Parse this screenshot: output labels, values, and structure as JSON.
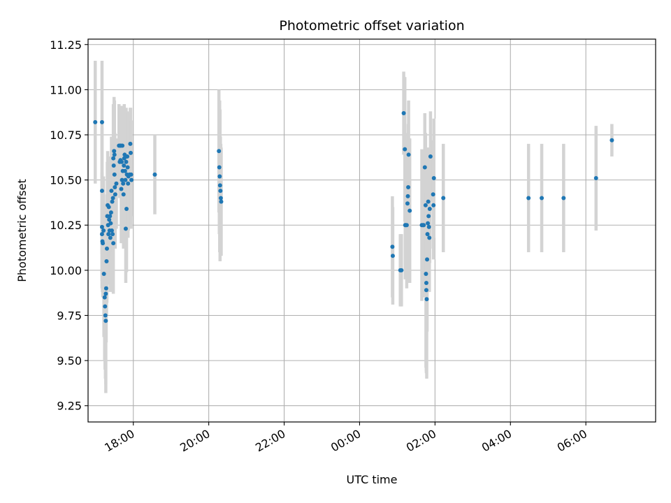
{
  "chart_data": {
    "type": "scatter",
    "title": "Photometric offset variation",
    "xlabel": "UTC time",
    "ylabel": "Photometric offset",
    "grid": true,
    "colors": {
      "point": "#1f77b4",
      "errorbar": "#d3d3d3",
      "grid": "#b0b0b0",
      "axis": "#000000"
    },
    "xlim": [
      16.8,
      31.85
    ],
    "ylim": [
      9.16,
      11.28
    ],
    "x_ticks": [
      {
        "value": 18,
        "label": "18:00"
      },
      {
        "value": 20,
        "label": "20:00"
      },
      {
        "value": 22,
        "label": "22:00"
      },
      {
        "value": 24,
        "label": "00:00"
      },
      {
        "value": 26,
        "label": "02:00"
      },
      {
        "value": 28,
        "label": "04:00"
      },
      {
        "value": 30,
        "label": "06:00"
      }
    ],
    "y_ticks": [
      {
        "value": 9.25,
        "label": "9.25"
      },
      {
        "value": 9.5,
        "label": "9.50"
      },
      {
        "value": 9.75,
        "label": "9.75"
      },
      {
        "value": 10.0,
        "label": "10.00"
      },
      {
        "value": 10.25,
        "label": "10.25"
      },
      {
        "value": 10.5,
        "label": "10.50"
      },
      {
        "value": 10.75,
        "label": "10.75"
      },
      {
        "value": 11.0,
        "label": "11.00"
      },
      {
        "value": 11.25,
        "label": "11.25"
      }
    ],
    "series": [
      {
        "name": "offset",
        "points": [
          [
            16.99,
            10.82,
            0.34
          ],
          [
            17.17,
            10.82,
            0.34
          ],
          [
            17.17,
            10.44,
            0.35
          ],
          [
            17.17,
            10.24,
            0.3
          ],
          [
            17.17,
            10.2,
            0.3
          ],
          [
            17.18,
            10.16,
            0.28
          ],
          [
            17.19,
            10.15,
            0.3
          ],
          [
            17.21,
            10.22,
            0.3
          ],
          [
            17.22,
            9.98,
            0.35
          ],
          [
            17.24,
            9.85,
            0.35
          ],
          [
            17.25,
            9.8,
            0.35
          ],
          [
            17.26,
            9.75,
            0.35
          ],
          [
            17.27,
            9.72,
            0.4
          ],
          [
            17.27,
            9.87,
            0.5
          ],
          [
            17.28,
            9.9,
            0.3
          ],
          [
            17.29,
            10.05,
            0.3
          ],
          [
            17.3,
            10.12,
            0.3
          ],
          [
            17.31,
            10.3,
            0.3
          ],
          [
            17.32,
            10.36,
            0.3
          ],
          [
            17.33,
            10.25,
            0.3
          ],
          [
            17.34,
            10.2,
            0.28
          ],
          [
            17.35,
            10.35,
            0.28
          ],
          [
            17.36,
            10.28,
            0.3
          ],
          [
            17.37,
            10.22,
            0.3
          ],
          [
            17.38,
            10.3,
            0.3
          ],
          [
            17.39,
            10.18,
            0.3
          ],
          [
            17.4,
            10.26,
            0.3
          ],
          [
            17.41,
            10.32,
            0.3
          ],
          [
            17.42,
            10.44,
            0.3
          ],
          [
            17.43,
            10.22,
            0.28
          ],
          [
            17.44,
            10.38,
            0.3
          ],
          [
            17.45,
            10.2,
            0.3
          ],
          [
            17.46,
            10.4,
            0.3
          ],
          [
            17.47,
            10.62,
            0.3
          ],
          [
            17.47,
            10.15,
            0.28
          ],
          [
            17.48,
            10.58,
            0.3
          ],
          [
            17.49,
            10.66,
            0.3
          ],
          [
            17.5,
            10.64,
            0.3
          ],
          [
            17.5,
            10.53,
            0.3
          ],
          [
            17.51,
            10.46,
            0.3
          ],
          [
            17.52,
            10.42,
            0.3
          ],
          [
            17.55,
            10.48,
            0.25
          ],
          [
            17.62,
            10.69,
            0.23
          ],
          [
            17.64,
            10.6,
            0.2
          ],
          [
            17.65,
            10.69,
            0.22
          ],
          [
            17.66,
            10.61,
            0.2
          ],
          [
            17.67,
            10.69,
            0.22
          ],
          [
            17.68,
            10.45,
            0.3
          ],
          [
            17.69,
            10.6,
            0.3
          ],
          [
            17.7,
            10.5,
            0.3
          ],
          [
            17.71,
            10.69,
            0.22
          ],
          [
            17.72,
            10.55,
            0.3
          ],
          [
            17.73,
            10.48,
            0.3
          ],
          [
            17.74,
            10.42,
            0.3
          ],
          [
            17.75,
            10.58,
            0.3
          ],
          [
            17.76,
            10.62,
            0.3
          ],
          [
            17.77,
            10.64,
            0.2
          ],
          [
            17.78,
            10.55,
            0.25
          ],
          [
            17.79,
            10.5,
            0.3
          ],
          [
            17.8,
            10.23,
            0.3
          ],
          [
            17.81,
            10.6,
            0.3
          ],
          [
            17.82,
            10.34,
            0.35
          ],
          [
            17.83,
            10.53,
            0.3
          ],
          [
            17.84,
            10.63,
            0.25
          ],
          [
            17.85,
            10.57,
            0.3
          ],
          [
            17.86,
            10.48,
            0.3
          ],
          [
            17.87,
            10.52,
            0.3
          ],
          [
            17.9,
            10.53,
            0.3
          ],
          [
            17.92,
            10.7,
            0.2
          ],
          [
            17.93,
            10.65,
            0.25
          ],
          [
            17.94,
            10.53,
            0.3
          ],
          [
            17.95,
            10.5,
            0.2
          ],
          [
            18.57,
            10.53,
            0.22
          ],
          [
            20.27,
            10.66,
            0.34
          ],
          [
            20.28,
            10.57,
            0.37
          ],
          [
            20.29,
            10.52,
            0.42
          ],
          [
            20.3,
            10.47,
            0.42
          ],
          [
            20.31,
            10.44,
            0.3
          ],
          [
            20.32,
            10.4,
            0.3
          ],
          [
            20.33,
            10.38,
            0.3
          ],
          [
            24.87,
            10.13,
            0.28
          ],
          [
            24.88,
            10.08,
            0.27
          ],
          [
            25.08,
            10.0,
            0.2
          ],
          [
            25.11,
            10.0,
            0.2
          ],
          [
            25.17,
            10.87,
            0.23
          ],
          [
            25.2,
            10.67,
            0.4
          ],
          [
            25.21,
            10.25,
            0.3
          ],
          [
            25.22,
            10.25,
            0.3
          ],
          [
            25.25,
            10.25,
            0.35
          ],
          [
            25.27,
            10.37,
            0.35
          ],
          [
            25.28,
            10.41,
            0.35
          ],
          [
            25.29,
            10.46,
            0.35
          ],
          [
            25.3,
            10.64,
            0.3
          ],
          [
            25.33,
            10.33,
            0.4
          ],
          [
            25.65,
            10.25,
            0.42
          ],
          [
            25.68,
            10.25,
            0.4
          ],
          [
            25.7,
            10.25,
            0.35
          ],
          [
            25.73,
            10.57,
            0.3
          ],
          [
            25.75,
            10.36,
            0.4
          ],
          [
            25.76,
            9.98,
            0.52
          ],
          [
            25.77,
            9.93,
            0.5
          ],
          [
            25.77,
            9.89,
            0.45
          ],
          [
            25.78,
            9.84,
            0.44
          ],
          [
            25.79,
            10.06,
            0.4
          ],
          [
            25.8,
            10.2,
            0.3
          ],
          [
            25.81,
            10.26,
            0.3
          ],
          [
            25.82,
            10.38,
            0.3
          ],
          [
            25.83,
            10.3,
            0.3
          ],
          [
            25.84,
            10.24,
            0.3
          ],
          [
            25.85,
            10.18,
            0.3
          ],
          [
            25.86,
            10.34,
            0.3
          ],
          [
            25.88,
            10.63,
            0.25
          ],
          [
            25.95,
            10.42,
            0.3
          ],
          [
            25.96,
            10.36,
            0.3
          ],
          [
            25.97,
            10.51,
            0.33
          ],
          [
            26.22,
            10.4,
            0.3
          ],
          [
            28.48,
            10.4,
            0.3
          ],
          [
            28.83,
            10.4,
            0.3
          ],
          [
            29.41,
            10.4,
            0.3
          ],
          [
            30.27,
            10.51,
            0.29
          ],
          [
            30.69,
            10.72,
            0.09
          ]
        ]
      }
    ]
  }
}
